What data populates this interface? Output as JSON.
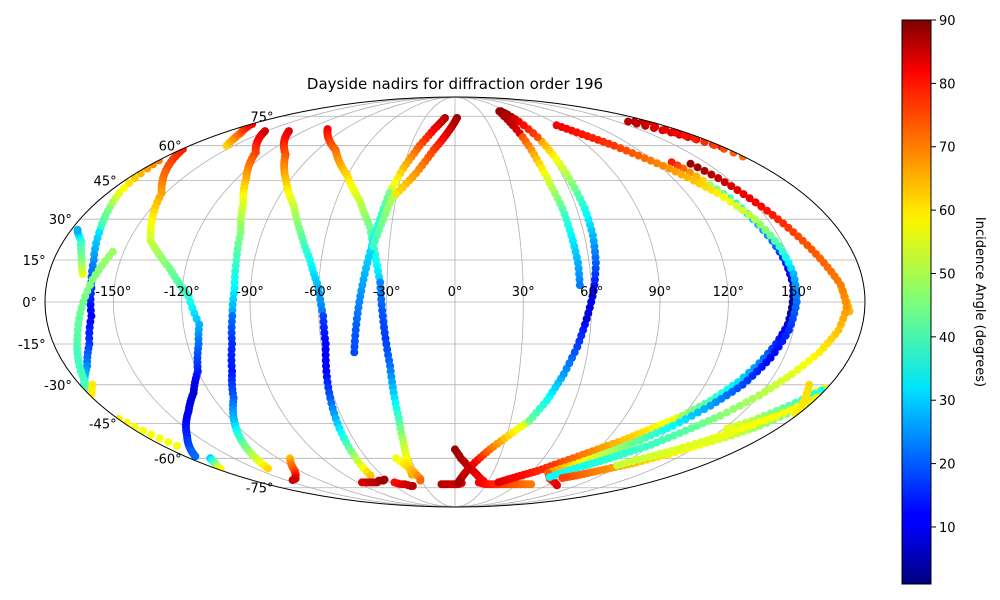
{
  "chart_data": {
    "type": "scatter",
    "projection": "mollweide",
    "title": "Dayside nadirs for diffraction order 196",
    "xlabel": "",
    "ylabel": "",
    "grid": true,
    "xlim": [
      -180,
      180
    ],
    "ylim": [
      -90,
      90
    ],
    "lon_ticks": [
      -150,
      -120,
      -90,
      -60,
      -30,
      0,
      30,
      60,
      90,
      120,
      150
    ],
    "lon_tick_labels": [
      "-150°",
      "-120°",
      "-90°",
      "-60°",
      "-30°",
      "0°",
      "30°",
      "60°",
      "90°",
      "120°",
      "150°"
    ],
    "lat_ticks": [
      -75,
      -60,
      -45,
      -30,
      -15,
      0,
      15,
      30,
      45,
      60,
      75
    ],
    "lat_tick_labels": [
      "-75°",
      "-60°",
      "-45°",
      "-30°",
      "-15°",
      "0°",
      "15°",
      "30°",
      "45°",
      "60°",
      "75°"
    ],
    "colorbar": {
      "label": "Incidence Angle (degrees)",
      "colormap": "jet",
      "range": [
        1,
        90
      ],
      "ticks": [
        10,
        20,
        30,
        40,
        50,
        60,
        70,
        80,
        90
      ],
      "tick_labels": [
        "10",
        "20",
        "30",
        "40",
        "50",
        "60",
        "70",
        "80",
        "90"
      ]
    },
    "tracks": [
      {
        "lon": [
          -200,
          -174,
          -152,
          -140,
          -127,
          -117
        ],
        "lat": [
          72,
          55,
          40,
          22,
          12,
          2
        ],
        "incidence": [
          85,
          75,
          65,
          52,
          45,
          38
        ]
      },
      {
        "lon": [
          -117,
          -113,
          -115,
          -120,
          -128,
          -138,
          -155,
          -175
        ],
        "lat": [
          2,
          -8,
          -15,
          -25,
          -33,
          -40,
          -50,
          -60
        ],
        "incidence": [
          38,
          28,
          22,
          15,
          8,
          10,
          15,
          22
        ]
      },
      {
        "lon": [
          -166,
          -170,
          -175,
          -180
        ],
        "lat": [
          -60,
          -62,
          -64,
          -66
        ],
        "incidence": [
          30,
          40,
          50,
          60
        ]
      },
      {
        "lon": [
          -178,
          -182,
          -186
        ],
        "lat": [
          -30,
          -32,
          -34
        ],
        "incidence": [
          50,
          55,
          60
        ]
      },
      {
        "lon": [
          -194,
          -184,
          -178,
          -174,
          -170,
          -166
        ],
        "lat": [
          72,
          62,
          50,
          40,
          33,
          25
        ],
        "incidence": [
          85,
          75,
          65,
          55,
          45,
          38
        ]
      },
      {
        "lon": [
          -166,
          -162,
          -160,
          -160,
          -164,
          -170,
          -178,
          -190,
          -200,
          -210
        ],
        "lat": [
          25,
          15,
          5,
          -5,
          -15,
          -23,
          -30,
          -38,
          -44,
          -48
        ],
        "incidence": [
          32,
          25,
          17,
          12,
          17,
          24,
          32,
          42,
          50,
          56
        ]
      },
      {
        "lon": [
          -165,
          -168,
          -172,
          -176,
          -178
        ],
        "lat": [
          10,
          16,
          22,
          25,
          27
        ],
        "incidence": [
          55,
          45,
          40,
          30,
          25
        ]
      },
      {
        "lon": [
          -155,
          -160,
          -166,
          -172,
          -178,
          -182,
          -185
        ],
        "lat": [
          60,
          63,
          66,
          68,
          70,
          72,
          73
        ],
        "incidence": [
          60,
          65,
          70,
          74,
          78,
          82,
          86
        ]
      },
      {
        "lon": [
          -190,
          -188,
          -186
        ],
        "lat": [
          5,
          0,
          -5
        ],
        "incidence": [
          60,
          62,
          64
        ]
      },
      {
        "lon": [
          -151,
          -128,
          -115,
          -106,
          -100,
          -98,
          -97,
          -98
        ],
        "lat": [
          67,
          57,
          46,
          36,
          25,
          15,
          5,
          -5
        ],
        "incidence": [
          84,
          74,
          64,
          54,
          46,
          40,
          34,
          26
        ]
      },
      {
        "lon": [
          -98,
          -100,
          -104,
          -110,
          -120,
          -128,
          -135,
          -142
        ],
        "lat": [
          -5,
          -15,
          -25,
          -35,
          -45,
          -53,
          -60,
          -66
        ],
        "incidence": [
          22,
          16,
          14,
          20,
          30,
          42,
          52,
          62
        ]
      },
      {
        "lon": [
          -112,
          -118,
          -124,
          -130,
          -138,
          -146
        ],
        "lat": [
          -60,
          -63,
          -66,
          -68,
          -70,
          -71
        ],
        "incidence": [
          62,
          68,
          72,
          76,
          80,
          85
        ]
      },
      {
        "lon": [
          -132,
          -107,
          -92,
          -80,
          -72,
          -65,
          -60,
          -58
        ],
        "lat": [
          67,
          56,
          45,
          35,
          25,
          15,
          5,
          -5
        ],
        "incidence": [
          82,
          72,
          62,
          52,
          44,
          36,
          28,
          22
        ]
      },
      {
        "lon": [
          -58,
          -58,
          -60,
          -62,
          -64,
          -66,
          -68,
          -70
        ],
        "lat": [
          -5,
          -15,
          -25,
          -35,
          -45,
          -55,
          -63,
          -70
        ],
        "incidence": [
          18,
          12,
          12,
          20,
          30,
          42,
          54,
          64
        ]
      },
      {
        "lon": [
          -86,
          -78,
          -72,
          -68,
          -64,
          -60
        ],
        "lat": [
          -72,
          -72,
          -72,
          -71,
          -71,
          -70
        ],
        "incidence": [
          82,
          84,
          85,
          86,
          87,
          88
        ]
      },
      {
        "lon": [
          -104,
          -78,
          -60,
          -48,
          -40,
          -36,
          -33
        ],
        "lat": [
          68,
          58,
          47,
          37,
          27,
          17,
          7
        ],
        "incidence": [
          80,
          70,
          60,
          52,
          44,
          37,
          30
        ]
      },
      {
        "lon": [
          -33,
          -32,
          -31,
          -30,
          -30,
          -30,
          -31,
          -33,
          -36
        ],
        "lat": [
          7,
          -3,
          -13,
          -23,
          -33,
          -43,
          -53,
          -62,
          -70
        ],
        "incidence": [
          24,
          20,
          17,
          22,
          30,
          40,
          50,
          58,
          65
        ]
      },
      {
        "lon": [
          -56,
          -52,
          -48,
          -44,
          -40
        ],
        "lat": [
          -72,
          -73,
          -73,
          -74,
          -74
        ],
        "incidence": [
          78,
          80,
          82,
          84,
          86
        ]
      },
      {
        "lon": [
          -40,
          -35,
          -32,
          -30,
          -32
        ],
        "lat": [
          -60,
          -64,
          -67,
          -70,
          -72
        ],
        "incidence": [
          55,
          60,
          64,
          68,
          72
        ]
      },
      {
        "lon": [
          -10,
          -17,
          -24,
          -30,
          -34
        ],
        "lat": [
          74,
          68,
          60,
          50,
          40
        ],
        "incidence": [
          86,
          80,
          72,
          62,
          52
        ]
      },
      {
        "lon": [
          -34,
          -36,
          -38,
          -40,
          -42,
          -44,
          -46
        ],
        "lat": [
          40,
          30,
          20,
          10,
          0,
          -10,
          -20
        ],
        "incidence": [
          45,
          38,
          32,
          28,
          24,
          20,
          18
        ]
      },
      {
        "lon": [
          2,
          -6,
          -14,
          -22,
          -32
        ],
        "lat": [
          74,
          66,
          58,
          48,
          38
        ],
        "incidence": [
          88,
          82,
          74,
          66,
          58
        ]
      },
      {
        "lon": [
          -32,
          -35,
          -38
        ],
        "lat": [
          38,
          28,
          18
        ],
        "incidence": [
          50,
          44,
          38
        ]
      },
      {
        "lon": [
          -13,
          -4,
          3,
          8
        ],
        "lat": [
          -73,
          -73,
          -73,
          -72
        ],
        "incidence": [
          85,
          84,
          83,
          82
        ]
      },
      {
        "lon": [
          3,
          8,
          14,
          22,
          31,
          40
        ],
        "lat": [
          -72,
          -67,
          -62,
          -56,
          -50,
          -44
        ],
        "incidence": [
          88,
          84,
          80,
          70,
          60,
          52
        ]
      },
      {
        "lon": [
          40,
          46,
          51,
          55,
          58
        ],
        "lat": [
          -44,
          -36,
          -26,
          -16,
          -6
        ],
        "incidence": [
          44,
          36,
          26,
          18,
          12
        ]
      },
      {
        "lon": [
          58,
          61,
          63,
          64,
          64,
          63,
          62,
          61
        ],
        "lat": [
          -6,
          4,
          14,
          24,
          34,
          44,
          54,
          64
        ],
        "incidence": [
          8,
          12,
          20,
          28,
          36,
          46,
          56,
          66
        ]
      },
      {
        "lon": [
          61,
          59,
          57,
          55,
          53,
          51,
          50,
          50
        ],
        "lat": [
          64,
          72,
          76,
          78,
          78,
          75,
          70,
          64
        ],
        "incidence": [
          72,
          80,
          86,
          88,
          88,
          86,
          84,
          80
        ]
      },
      {
        "lon": [
          50,
          50,
          51,
          53,
          54,
          55,
          55
        ],
        "lat": [
          64,
          54,
          44,
          34,
          24,
          14,
          4
        ],
        "incidence": [
          72,
          62,
          52,
          42,
          34,
          28,
          22
        ]
      },
      {
        "lon": [
          0,
          4,
          10,
          16,
          22,
          28
        ],
        "lat": [
          -56,
          -60,
          -64,
          -67,
          -70,
          -72
        ],
        "incidence": [
          88,
          86,
          84,
          82,
          80,
          78
        ]
      },
      {
        "lon": [
          22,
          30,
          38,
          46,
          55,
          65,
          75
        ],
        "lat": [
          -72,
          -73,
          -73,
          -73,
          -73,
          -73,
          -73
        ],
        "incidence": [
          80,
          78,
          76,
          74,
          72,
          70,
          68
        ]
      },
      {
        "lon": [
          40,
          48,
          56,
          64,
          72,
          80,
          90,
          100,
          110,
          120
        ],
        "lat": [
          -72,
          -70,
          -68,
          -66,
          -63,
          -60,
          -56,
          -52,
          -47,
          -42
        ],
        "incidence": [
          82,
          80,
          78,
          76,
          74,
          70,
          66,
          62,
          58,
          54
        ]
      },
      {
        "lon": [
          120,
          128,
          135,
          140,
          144,
          147,
          148
        ],
        "lat": [
          -42,
          -36,
          -29,
          -22,
          -15,
          -8,
          -2
        ],
        "incidence": [
          48,
          40,
          32,
          24,
          16,
          8,
          4
        ]
      },
      {
        "lon": [
          148,
          149,
          148,
          146,
          143,
          140,
          135
        ],
        "lat": [
          -2,
          6,
          14,
          22,
          30,
          38,
          45
        ],
        "incidence": [
          2,
          6,
          14,
          22,
          30,
          40,
          52
        ]
      },
      {
        "lon": [
          135,
          132,
          129
        ],
        "lat": [
          45,
          50,
          54
        ],
        "incidence": [
          60,
          70,
          80
        ]
      },
      {
        "lon": [
          88,
          108,
          124,
          136,
          144,
          148,
          150
        ],
        "lat": [
          70,
          60,
          50,
          40,
          30,
          20,
          10
        ],
        "incidence": [
          80,
          74,
          66,
          58,
          50,
          40,
          30
        ]
      },
      {
        "lon": [
          150,
          150,
          148,
          144,
          138,
          130,
          120,
          110,
          98,
          86,
          74
        ],
        "lat": [
          10,
          0,
          -10,
          -20,
          -30,
          -38,
          -46,
          -52,
          -58,
          -63,
          -67
        ],
        "incidence": [
          28,
          22,
          16,
          12,
          18,
          26,
          34,
          42,
          50,
          58,
          66
        ]
      },
      {
        "lon": [
          74,
          82,
          92,
          102
        ],
        "lat": [
          -67,
          -70,
          -72,
          -74
        ],
        "incidence": [
          70,
          74,
          78,
          82
        ]
      },
      {
        "lon": [
          140,
          145,
          150,
          155,
          160
        ],
        "lat": [
          52,
          46,
          38,
          30,
          22
        ],
        "incidence": [
          88,
          84,
          80,
          76,
          72
        ]
      },
      {
        "lon": [
          160,
          165,
          170,
          172,
          170,
          165,
          158,
          150,
          140,
          130,
          120,
          105,
          90,
          78
        ],
        "lat": [
          22,
          14,
          6,
          -2,
          -10,
          -18,
          -26,
          -34,
          -42,
          -48,
          -54,
          -60,
          -65,
          -70
        ],
        "incidence": [
          72,
          70,
          68,
          66,
          62,
          58,
          54,
          50,
          46,
          42,
          40,
          38,
          36,
          34
        ]
      },
      {
        "lon": [
          205,
          200,
          196,
          192,
          188,
          184,
          180,
          175,
          168,
          160,
          150,
          140,
          128,
          115,
          102,
          90
        ],
        "lat": [
          18,
          8,
          -2,
          -12,
          -20,
          -28,
          -34,
          -40,
          -46,
          -50,
          -54,
          -58,
          -62,
          -65,
          -68,
          -70
        ],
        "incidence": [
          48,
          46,
          44,
          42,
          40,
          40,
          42,
          44,
          48,
          52,
          56,
          58,
          62,
          66,
          70,
          74
        ]
      },
      {
        "lon": [
          186,
          178,
          170,
          160,
          150,
          140,
          128,
          116
        ],
        "lat": [
          -30,
          -36,
          -42,
          -47,
          -52,
          -56,
          -60,
          -64
        ],
        "incidence": [
          58,
          58,
          56,
          56,
          54,
          54,
          52,
          52
        ]
      },
      {
        "lon": [
          -190,
          -182,
          -176,
          -170
        ],
        "lat": [
          -30,
          -40,
          -48,
          -56
        ],
        "incidence": [
          60,
          58,
          56,
          56
        ]
      }
    ]
  }
}
